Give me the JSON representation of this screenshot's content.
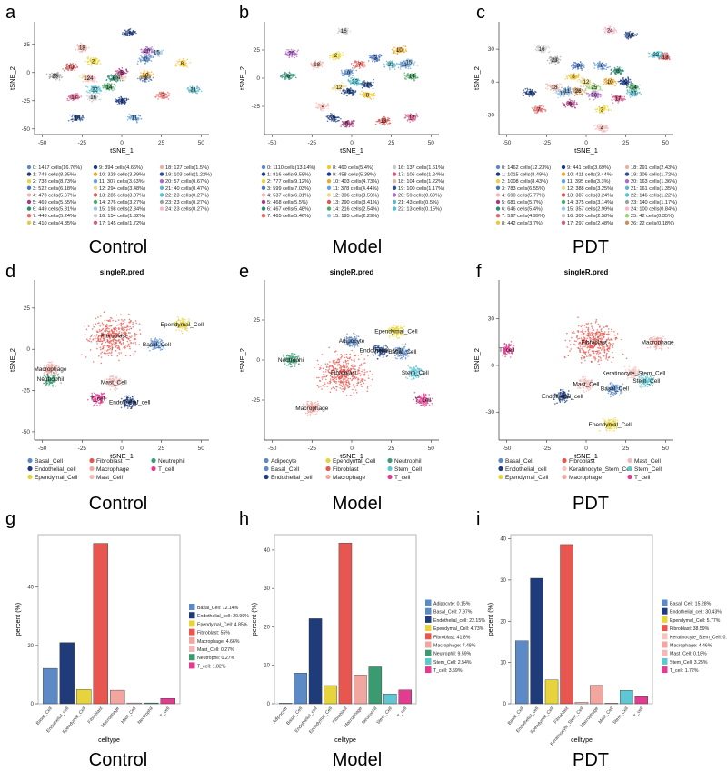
{
  "figure": {
    "panel_letters": [
      "a",
      "b",
      "c",
      "d",
      "e",
      "f",
      "g",
      "h",
      "i"
    ],
    "group_labels": [
      "Control",
      "Model",
      "PDT"
    ]
  },
  "colors": {
    "clusters": [
      "#5b8ac7",
      "#1f3b7a",
      "#e7d43c",
      "#4d74b8",
      "#f2b8b3",
      "#a63c7d",
      "#2f8c73",
      "#e46a6a",
      "#f0c63a",
      "#1a3a85",
      "#e8aa33",
      "#6aa0d8",
      "#e9d88a",
      "#d55a5a",
      "#4caa6a",
      "#9ec4e6",
      "#c8c8c8",
      "#d45a8a",
      "#e8b0a6",
      "#2f4f8f",
      "#b06ac8",
      "#5fb8c8",
      "#4fc0d0",
      "#a0a0a0",
      "#f7b7c7",
      "#9ad27a",
      "#c89058"
    ],
    "celltypes": {
      "Adipocyte": "#5b8ac7",
      "Basal_Cell": "#5b8ac7",
      "Endothelial_cell": "#1f3b7a",
      "Ependymal_Cell": "#e7d43c",
      "Fibroblast": "#e8574f",
      "Keratinocyte_Stem_Cell": "#f4c6c0",
      "Macrophage": "#f2a6a0",
      "Mast_Cell": "#f0b8b8",
      "Neutrophil": "#3a9a70",
      "Stem_Cell": "#5fc6d2",
      "T_cell": "#e23b8f"
    }
  },
  "chart_data": [
    {
      "id": "a",
      "type": "scatter",
      "title": "",
      "xlabel": "tSNE_1",
      "ylabel": "tSNE_2",
      "xlim": [
        -55,
        55
      ],
      "ylim": [
        -55,
        45
      ],
      "xticks": [
        -50,
        -25,
        0,
        25,
        50
      ],
      "yticks": [
        -50,
        -25,
        0,
        25
      ],
      "cluster_labels": [
        {
          "label": "0",
          "x": 15,
          "y": 12,
          "c": 0
        },
        {
          "label": "1",
          "x": 5,
          "y": 35,
          "c": 1
        },
        {
          "label": "2",
          "x": -18,
          "y": 10,
          "c": 2
        },
        {
          "label": "3",
          "x": 15,
          "y": -5,
          "c": 3
        },
        {
          "label": "4",
          "x": -2,
          "y": -4,
          "c": 4
        },
        {
          "label": "5",
          "x": 0,
          "y": 0,
          "c": 5
        },
        {
          "label": "6",
          "x": -5,
          "y": -5,
          "c": 6
        },
        {
          "label": "7",
          "x": 26,
          "y": -20,
          "c": 7
        },
        {
          "label": "8",
          "x": 38,
          "y": 8,
          "c": 8
        },
        {
          "label": "9",
          "x": 0,
          "y": -25,
          "c": 9
        },
        {
          "label": "10",
          "x": 15,
          "y": -2,
          "c": 10
        },
        {
          "label": "11",
          "x": 8,
          "y": -40,
          "c": 11
        },
        {
          "label": "12",
          "x": -22,
          "y": -5,
          "c": 12
        },
        {
          "label": "13",
          "x": -32,
          "y": 5,
          "c": 13
        },
        {
          "label": "14",
          "x": -8,
          "y": -13,
          "c": 14
        },
        {
          "label": "15",
          "x": 22,
          "y": 18,
          "c": 15
        },
        {
          "label": "16",
          "x": -18,
          "y": -22,
          "c": 16
        },
        {
          "label": "17",
          "x": -30,
          "y": -22,
          "c": 17
        },
        {
          "label": "18",
          "x": -25,
          "y": 22,
          "c": 18
        },
        {
          "label": "19",
          "x": -28,
          "y": -40,
          "c": 19
        },
        {
          "label": "20",
          "x": 16,
          "y": 19,
          "c": 20
        },
        {
          "label": "21",
          "x": 45,
          "y": -15,
          "c": 21
        },
        {
          "label": "22",
          "x": -17,
          "y": -15,
          "c": 22
        },
        {
          "label": "23",
          "x": -42,
          "y": -3,
          "c": 23
        },
        {
          "label": "24",
          "x": -20,
          "y": -5,
          "c": 24
        }
      ],
      "legend": [
        "0: 1417 cells(16.76%)",
        "1: 748 cells(8.85%)",
        "2: 738 cells(8.73%)",
        "3: 522 cells(6.18%)",
        "4: 478 cells(5.67%)",
        "5: 469 cells(5.55%)",
        "6: 449 cells(5.31%)",
        "7: 443 cells(5.24%)",
        "8: 410 cells(4.85%)",
        "9: 394 cells(4.66%)",
        "10: 329 cells(3.89%)",
        "11: 307 cells(3.63%)",
        "12: 294 cells(3.48%)",
        "13: 285 cells(3.37%)",
        "14: 276 cells(3.27%)",
        "15: 198 cells(2.34%)",
        "16: 154 cells(1.82%)",
        "17: 145 cells(1.72%)",
        "18: 127 cells(1.5%)",
        "19: 103 cells(1.22%)",
        "20: 57 cells(0.67%)",
        "21: 40 cells(0.47%)",
        "22: 23 cells(0.27%)",
        "23: 23 cells(0.27%)",
        "24: 23 cells(0.27%)"
      ]
    },
    {
      "id": "b",
      "type": "scatter",
      "title": "",
      "xlabel": "tSNE_1",
      "ylabel": "tSNE_2",
      "xlim": [
        -55,
        55
      ],
      "ylim": [
        -50,
        50
      ],
      "xticks": [
        -50,
        -25,
        0,
        25,
        50
      ],
      "yticks": [
        -25,
        0,
        25
      ],
      "cluster_labels": [
        {
          "label": "0",
          "x": -2,
          "y": 5,
          "c": 0
        },
        {
          "label": "1",
          "x": 10,
          "y": -5,
          "c": 1
        },
        {
          "label": "2",
          "x": -10,
          "y": 20,
          "c": 2
        },
        {
          "label": "3",
          "x": 15,
          "y": 18,
          "c": 3
        },
        {
          "label": "4",
          "x": -18,
          "y": -25,
          "c": 4
        },
        {
          "label": "5",
          "x": -3,
          "y": -40,
          "c": 5
        },
        {
          "label": "6",
          "x": -40,
          "y": 2,
          "c": 6
        },
        {
          "label": "7",
          "x": 5,
          "y": 12,
          "c": 7
        },
        {
          "label": "8",
          "x": 10,
          "y": -15,
          "c": 8
        },
        {
          "label": "9",
          "x": -2,
          "y": -12,
          "c": 9
        },
        {
          "label": "10",
          "x": 30,
          "y": 25,
          "c": 10
        },
        {
          "label": "11",
          "x": 33,
          "y": 12,
          "c": 11
        },
        {
          "label": "12",
          "x": -8,
          "y": -8,
          "c": 12
        },
        {
          "label": "13",
          "x": 20,
          "y": -38,
          "c": 13
        },
        {
          "label": "14",
          "x": 38,
          "y": 2,
          "c": 14
        },
        {
          "label": "15",
          "x": 36,
          "y": 14,
          "c": 15
        },
        {
          "label": "16",
          "x": -5,
          "y": 42,
          "c": 16
        },
        {
          "label": "17",
          "x": 38,
          "y": -35,
          "c": 17
        },
        {
          "label": "18",
          "x": -22,
          "y": 12,
          "c": 18
        },
        {
          "label": "19",
          "x": -12,
          "y": -35,
          "c": 19
        },
        {
          "label": "20",
          "x": -38,
          "y": 22,
          "c": 20
        },
        {
          "label": "21",
          "x": 25,
          "y": 12,
          "c": 21
        },
        {
          "label": "22",
          "x": 2,
          "y": -3,
          "c": 22
        }
      ],
      "legend": [
        "0: 1110 cells(13.14%)",
        "1: 816 cells(9.58%)",
        "2: 777 cells(9.12%)",
        "3: 599 cells(7.03%)",
        "4: 537 cells(6.31%)",
        "5: 468 cells(5.5%)",
        "6: 467 cells(5.48%)",
        "7: 465 cells(5.46%)",
        "8: 460 cells(5.4%)",
        "9: 458 cells(5.38%)",
        "10: 403 cells(4.73%)",
        "11: 378 cells(4.44%)",
        "12: 306 cells(3.59%)",
        "13: 290 cells(3.41%)",
        "14: 216 cells(2.54%)",
        "15: 195 cells(2.29%)",
        "16: 137 cells(1.61%)",
        "17: 106 cells(1.24%)",
        "18: 104 cells(1.22%)",
        "19: 100 cells(1.17%)",
        "20: 59 cells(0.69%)",
        "21: 43 cells(0.5%)",
        "22: 13 cells(0.15%)"
      ]
    },
    {
      "id": "c",
      "type": "scatter",
      "title": "",
      "xlabel": "tSNE_1",
      "ylabel": "tSNE_2",
      "xlim": [
        -55,
        55
      ],
      "ylim": [
        -48,
        55
      ],
      "xticks": [
        -50,
        -25,
        0,
        25,
        50
      ],
      "yticks": [
        -30,
        0,
        30
      ],
      "cluster_labels": [
        {
          "label": "0",
          "x": 10,
          "y": 15,
          "c": 0
        },
        {
          "label": "1",
          "x": -35,
          "y": -10,
          "c": 1
        },
        {
          "label": "2",
          "x": 10,
          "y": -25,
          "c": 2
        },
        {
          "label": "3",
          "x": -5,
          "y": 15,
          "c": 3
        },
        {
          "label": "4",
          "x": 10,
          "y": -42,
          "c": 4
        },
        {
          "label": "5",
          "x": -10,
          "y": -20,
          "c": 5
        },
        {
          "label": "6",
          "x": 20,
          "y": 10,
          "c": 6
        },
        {
          "label": "7",
          "x": -30,
          "y": -25,
          "c": 7
        },
        {
          "label": "8",
          "x": -8,
          "y": 5,
          "c": 8
        },
        {
          "label": "9",
          "x": 25,
          "y": 0,
          "c": 9
        },
        {
          "label": "10",
          "x": 15,
          "y": 0,
          "c": 10
        },
        {
          "label": "11",
          "x": -12,
          "y": -8,
          "c": 11
        },
        {
          "label": "12",
          "x": 0,
          "y": 0,
          "c": 12
        },
        {
          "label": "13",
          "x": 50,
          "y": 23,
          "c": 13
        },
        {
          "label": "14",
          "x": 30,
          "y": -5,
          "c": 14
        },
        {
          "label": "15",
          "x": -15,
          "y": -10,
          "c": 15
        },
        {
          "label": "16",
          "x": -28,
          "y": 30,
          "c": 16
        },
        {
          "label": "17",
          "x": 20,
          "y": -15,
          "c": 17
        },
        {
          "label": "18",
          "x": -20,
          "y": -5,
          "c": 18
        },
        {
          "label": "19",
          "x": 28,
          "y": 43,
          "c": 19
        },
        {
          "label": "20",
          "x": 5,
          "y": -12,
          "c": 20
        },
        {
          "label": "21",
          "x": 30,
          "y": -10,
          "c": 21
        },
        {
          "label": "22",
          "x": 44,
          "y": 25,
          "c": 22
        },
        {
          "label": "23",
          "x": -20,
          "y": 20,
          "c": 23
        },
        {
          "label": "24",
          "x": 15,
          "y": 47,
          "c": 24
        },
        {
          "label": "25",
          "x": 5,
          "y": -5,
          "c": 25
        },
        {
          "label": "26",
          "x": -5,
          "y": -8,
          "c": 26
        }
      ],
      "legend": [
        "0: 1462 cells(12.23%)",
        "1: 1015 cells(8.49%)",
        "2: 1008 cells(8.43%)",
        "3: 783 cells(6.55%)",
        "4: 690 cells(5.77%)",
        "5: 681 cells(5.7%)",
        "6: 646 cells(5.4%)",
        "7: 597 cells(4.99%)",
        "8: 442 cells(3.7%)",
        "9: 441 cells(3.69%)",
        "10: 411 cells(3.44%)",
        "11: 395 cells(3.3%)",
        "12: 388 cells(3.25%)",
        "13: 387 cells(3.24%)",
        "14: 375 cells(3.14%)",
        "15: 357 cells(2.99%)",
        "16: 309 cells(2.58%)",
        "17: 297 cells(2.48%)",
        "18: 291 cells(2.43%)",
        "19: 206 cells(1.72%)",
        "20: 163 cells(1.36%)",
        "21: 161 cells(1.35%)",
        "22: 146 cells(1.22%)",
        "23: 140 cells(1.17%)",
        "24: 100 cells(0.84%)",
        "25: 42 cells(0.35%)",
        "26: 22 cells(0.18%)"
      ]
    },
    {
      "id": "d",
      "type": "scatter",
      "title": "singleR.pred",
      "xlabel": "tSNE_1",
      "ylabel": "tSNE_2",
      "xlim": [
        -55,
        55
      ],
      "ylim": [
        -55,
        42
      ],
      "xticks": [
        -50,
        -25,
        0,
        25,
        50
      ],
      "yticks": [
        -50,
        -25,
        0,
        25
      ],
      "annotations": [
        {
          "label": "Fibroblast",
          "x": -5,
          "y": 8
        },
        {
          "label": "Ependymal_Cell",
          "x": 38,
          "y": 15
        },
        {
          "label": "Basal_Cell",
          "x": 22,
          "y": 3
        },
        {
          "label": "Macrophage",
          "x": -45,
          "y": -12
        },
        {
          "label": "Neutrophil",
          "x": -45,
          "y": -18
        },
        {
          "label": "Mast_Cell",
          "x": -5,
          "y": -20
        },
        {
          "label": "T_cell",
          "x": -15,
          "y": -30
        },
        {
          "label": "Endothelial_cell",
          "x": 5,
          "y": -32
        }
      ],
      "legend": [
        "Basal_Cell",
        "Endothelial_cell",
        "Ependymal_Cell",
        "Fibroblast",
        "Macrophage",
        "Mast_Cell",
        "Neutrophil",
        "T_cell"
      ]
    },
    {
      "id": "e",
      "type": "scatter",
      "title": "singleR.pred",
      "xlabel": "tSNE_1",
      "ylabel": "tSNE_2",
      "xlim": [
        -55,
        55
      ],
      "ylim": [
        -50,
        50
      ],
      "xticks": [
        -50,
        -25,
        0,
        25,
        50
      ],
      "yticks": [
        -25,
        0,
        25
      ],
      "annotations": [
        {
          "label": "Ependymal_Cell",
          "x": 28,
          "y": 18
        },
        {
          "label": "Adipocyte",
          "x": 0,
          "y": 12
        },
        {
          "label": "Endothelial_cell",
          "x": 18,
          "y": 6
        },
        {
          "label": "Basal_Cell",
          "x": 32,
          "y": 5
        },
        {
          "label": "Neutrophil",
          "x": -38,
          "y": 0
        },
        {
          "label": "Fibroblast",
          "x": -5,
          "y": -8
        },
        {
          "label": "Stem_Cell",
          "x": 40,
          "y": -8
        },
        {
          "label": "T_cell",
          "x": 45,
          "y": -25
        },
        {
          "label": "Macrophage",
          "x": -25,
          "y": -30
        }
      ],
      "legend": [
        "Adipocyte",
        "Basal_Cell",
        "Endothelial_cell",
        "Ependymal_Cell",
        "Fibroblast",
        "Macrophage",
        "Neutrophil",
        "Stem_Cell",
        "T_cell"
      ]
    },
    {
      "id": "f",
      "type": "scatter",
      "title": "singleR.pred",
      "xlabel": "tSNE_1",
      "ylabel": "tSNE_2",
      "xlim": [
        -55,
        55
      ],
      "ylim": [
        -48,
        55
      ],
      "xticks": [
        -50,
        -25,
        0,
        25,
        50
      ],
      "yticks": [
        -30,
        0,
        30
      ],
      "annotations": [
        {
          "label": "Fibroblast",
          "x": 5,
          "y": 15
        },
        {
          "label": "Macrophage",
          "x": 45,
          "y": 15
        },
        {
          "label": "T_cell",
          "x": -50,
          "y": 10
        },
        {
          "label": "Keratinocyte_Stem_Cell",
          "x": 30,
          "y": -5
        },
        {
          "label": "Stem_Cell",
          "x": 38,
          "y": -10
        },
        {
          "label": "Mast_Cell",
          "x": 0,
          "y": -12
        },
        {
          "label": "Basal_Cell",
          "x": 18,
          "y": -15
        },
        {
          "label": "Endothelial_cell",
          "x": -15,
          "y": -20
        },
        {
          "label": "Ependymal_Cell",
          "x": 15,
          "y": -38
        }
      ],
      "legend": [
        "Basal_Cell",
        "Endothelial_cell",
        "Ependymal_Cell",
        "Fibroblast",
        "Keratinocyte_Stem_Cell",
        "Macrophage",
        "Mast_Cell",
        "Stem_Cell",
        "T_cell"
      ]
    },
    {
      "id": "g",
      "type": "bar",
      "xlabel": "celltype",
      "ylabel": "percent (%)",
      "ylim": [
        0,
        58
      ],
      "yticks": [
        0,
        20,
        40
      ],
      "categories": [
        "Basal_Cell",
        "Endothelial_cell",
        "Ependymal_Cell",
        "Fibroblast",
        "Macrophage",
        "Mast_Cell",
        "Neutrophil",
        "T_cell"
      ],
      "values": [
        12.14,
        20.99,
        4.85,
        55,
        4.66,
        0.27,
        0.27,
        1.82
      ],
      "legend": [
        "Basal_Cell: 12.14%",
        "Endothelial_cell: 20.99%",
        "Ependymal_Cell: 4.85%",
        "Fibroblast: 55%",
        "Macrophage: 4.66%",
        "Mast_Cell: 0.27%",
        "Neutrophil: 0.27%",
        "T_cell: 1.82%"
      ]
    },
    {
      "id": "h",
      "type": "bar",
      "xlabel": "celltype",
      "ylabel": "percent (%)",
      "ylim": [
        0,
        44
      ],
      "yticks": [
        0,
        10,
        20,
        30,
        40
      ],
      "categories": [
        "Adipocyte",
        "Basal_Cell",
        "Endothelial_cell",
        "Ependymal_Cell",
        "Fibroblast",
        "Macrophage",
        "Neutrophil",
        "Stem_Cell",
        "T_cell"
      ],
      "values": [
        0.15,
        7.97,
        22.15,
        4.73,
        41.8,
        7.48,
        9.59,
        2.54,
        3.59
      ],
      "legend": [
        "Adipocyte: 0.15%",
        "Basal_Cell: 7.97%",
        "Endothelial_cell: 22.15%",
        "Ependymal_Cell: 4.73%",
        "Fibroblast: 41.8%",
        "Macrophage: 7.48%",
        "Neutrophil: 9.59%",
        "Stem_Cell: 2.54%",
        "T_cell: 3.59%"
      ]
    },
    {
      "id": "i",
      "type": "bar",
      "xlabel": "celltype",
      "ylabel": "percent (%)",
      "ylim": [
        0,
        41
      ],
      "yticks": [
        0,
        10,
        20,
        30,
        40
      ],
      "categories": [
        "Basal_Cell",
        "Endothelial_cell",
        "Ependymal_Cell",
        "Fibroblast",
        "Keratinocyte_Stem_Cell",
        "Macrophage",
        "Mast_Cell",
        "Stem_Cell",
        "T_cell"
      ],
      "values": [
        15.28,
        30.43,
        5.77,
        38.59,
        0.35,
        4.46,
        0.18,
        3.25,
        1.72
      ],
      "legend": [
        "Basal_Cell: 15.28%",
        "Endothelial_cell: 30.43%",
        "Ependymal_Cell: 5.77%",
        "Fibroblast: 38.59%",
        "Keratinocyte_Stem_Cell: 0.35%",
        "Macrophage: 4.46%",
        "Mast_Cell: 0.18%",
        "Stem_Cell: 3.25%",
        "T_cell: 1.72%"
      ]
    }
  ]
}
